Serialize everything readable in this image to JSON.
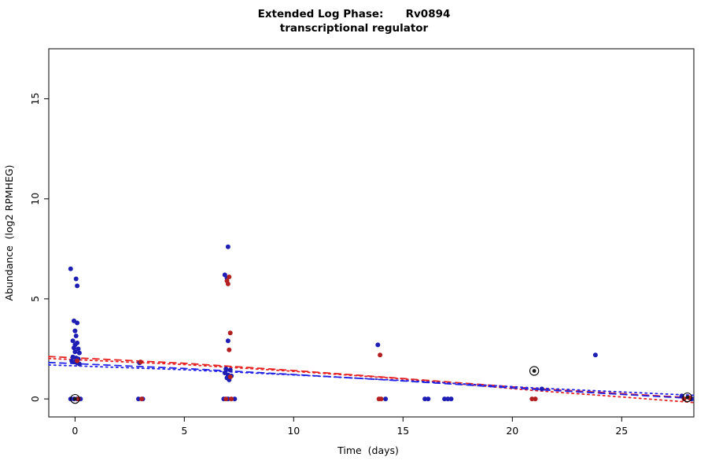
{
  "chart_data": {
    "type": "scatter",
    "title_line1": "Extended Log Phase:      Rv0894",
    "title_line2": "transcriptional regulator",
    "xlabel": "Time  (days)",
    "ylabel": "Abundance  (log2 RPMHEG)",
    "xlim": [
      -1.2,
      28.3
    ],
    "ylim": [
      -0.9,
      17.5
    ],
    "xticks": [
      0,
      5,
      10,
      15,
      20,
      25
    ],
    "yticks": [
      0,
      5,
      10,
      15
    ],
    "grid": false,
    "series": [
      {
        "name": "blue-replicates",
        "color": "#1E1EB4",
        "points": [
          [
            -0.2,
            6.5
          ],
          [
            0.05,
            6.0
          ],
          [
            0.1,
            5.65
          ],
          [
            -0.05,
            3.9
          ],
          [
            0.1,
            3.8
          ],
          [
            0.0,
            3.4
          ],
          [
            0.05,
            3.15
          ],
          [
            -0.1,
            2.9
          ],
          [
            0.1,
            2.8
          ],
          [
            0.0,
            2.7
          ],
          [
            -0.05,
            2.55
          ],
          [
            0.15,
            2.5
          ],
          [
            0.0,
            2.35
          ],
          [
            0.2,
            2.3
          ],
          [
            -0.1,
            2.1
          ],
          [
            0.05,
            2.05
          ],
          [
            0.15,
            2.0
          ],
          [
            -0.15,
            1.9
          ],
          [
            0.0,
            1.85
          ],
          [
            0.1,
            1.8
          ],
          [
            0.2,
            1.75
          ],
          [
            -0.2,
            0.0
          ],
          [
            -0.05,
            0.0
          ],
          [
            0.1,
            0.0
          ],
          [
            0.25,
            0.0
          ],
          [
            2.95,
            1.8
          ],
          [
            2.9,
            0.0
          ],
          [
            3.1,
            0.0
          ],
          [
            7.0,
            7.6
          ],
          [
            6.85,
            6.2
          ],
          [
            6.95,
            6.05
          ],
          [
            7.0,
            2.9
          ],
          [
            6.9,
            1.5
          ],
          [
            7.1,
            1.45
          ],
          [
            6.85,
            1.3
          ],
          [
            7.0,
            1.2
          ],
          [
            7.15,
            1.15
          ],
          [
            6.95,
            1.05
          ],
          [
            7.05,
            0.95
          ],
          [
            6.8,
            0.0
          ],
          [
            7.0,
            0.0
          ],
          [
            7.3,
            0.0
          ],
          [
            13.85,
            2.7
          ],
          [
            14.2,
            0.0
          ],
          [
            16.0,
            0.0
          ],
          [
            16.15,
            0.0
          ],
          [
            16.9,
            0.0
          ],
          [
            17.05,
            0.0
          ],
          [
            17.2,
            0.0
          ],
          [
            21.35,
            0.5
          ],
          [
            23.8,
            2.2
          ],
          [
            27.75,
            0.15
          ],
          [
            28.2,
            0.0
          ]
        ]
      },
      {
        "name": "red-replicates",
        "color": "#B42020",
        "points": [
          [
            0.1,
            1.9
          ],
          [
            0.15,
            0.0
          ],
          [
            3.0,
            1.85
          ],
          [
            3.05,
            0.0
          ],
          [
            7.05,
            6.1
          ],
          [
            6.95,
            5.9
          ],
          [
            7.0,
            5.75
          ],
          [
            7.1,
            3.3
          ],
          [
            7.05,
            2.45
          ],
          [
            7.1,
            1.1
          ],
          [
            6.9,
            0.0
          ],
          [
            7.15,
            0.0
          ],
          [
            13.95,
            2.2
          ],
          [
            13.9,
            0.0
          ],
          [
            14.0,
            0.0
          ],
          [
            20.9,
            0.0
          ],
          [
            21.05,
            0.0
          ],
          [
            27.85,
            0.0
          ],
          [
            28.1,
            0.05
          ]
        ]
      }
    ],
    "highlighted_points": {
      "name": "circled-points",
      "ring_color": "#000000",
      "dot_color": "#1a1a1a",
      "points": [
        [
          0.0,
          0.0
        ],
        [
          21.0,
          1.4
        ],
        [
          28.0,
          0.08
        ]
      ]
    },
    "trend_lines": [
      {
        "name": "red-dashed-fit",
        "color": "#E62222",
        "style": "dashed",
        "points": [
          [
            -1.2,
            2.12
          ],
          [
            5,
            1.78
          ],
          [
            10,
            1.42
          ],
          [
            15,
            1.02
          ],
          [
            21,
            0.52
          ],
          [
            28.3,
            0.05
          ]
        ]
      },
      {
        "name": "red-dotted-fit",
        "color": "#E62222",
        "style": "dotted",
        "points": [
          [
            -1.2,
            2.02
          ],
          [
            5,
            1.72
          ],
          [
            10,
            1.38
          ],
          [
            15,
            1.0
          ],
          [
            21,
            0.42
          ],
          [
            25,
            0.1
          ],
          [
            28.3,
            -0.18
          ]
        ]
      },
      {
        "name": "blue-dashed-fit",
        "color": "#2222E6",
        "style": "dashed",
        "points": [
          [
            -1.2,
            1.82
          ],
          [
            5,
            1.52
          ],
          [
            10,
            1.22
          ],
          [
            15,
            0.9
          ],
          [
            21,
            0.48
          ],
          [
            28.3,
            0.02
          ]
        ]
      },
      {
        "name": "blue-dotted-fit",
        "color": "#2222E6",
        "style": "dotted",
        "points": [
          [
            -1.2,
            1.7
          ],
          [
            5,
            1.46
          ],
          [
            10,
            1.2
          ],
          [
            15,
            0.92
          ],
          [
            21,
            0.55
          ],
          [
            28.3,
            0.18
          ]
        ]
      }
    ]
  }
}
